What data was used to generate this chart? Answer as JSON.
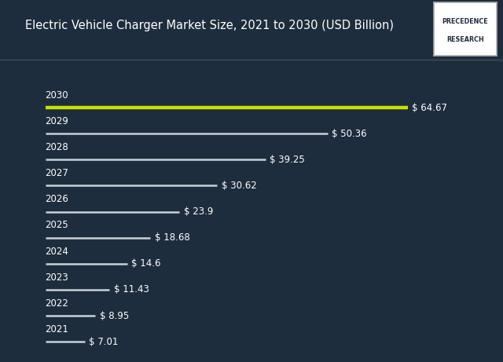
{
  "title": "Electric Vehicle Charger Market Size, 2021 to 2030 (USD Billion)",
  "years": [
    2030,
    2029,
    2028,
    2027,
    2026,
    2025,
    2024,
    2023,
    2022,
    2021
  ],
  "values": [
    64.67,
    50.36,
    39.25,
    30.62,
    23.9,
    18.68,
    14.6,
    11.43,
    8.95,
    7.01
  ],
  "labels": [
    "$ 64.67",
    "$ 50.36",
    "$ 39.25",
    "$ 30.62",
    "$ 23.9",
    "$ 18.68",
    "$ 14.6",
    "$ 11.43",
    "$ 8.95",
    "$ 7.01"
  ],
  "bar_color_default": "#c8d0d8",
  "bar_color_highlight": "#c8e000",
  "background_color": "#1e2d3d",
  "title_color": "#ffffff",
  "label_color": "#ffffff",
  "year_color": "#ffffff",
  "title_fontsize": 10.5,
  "label_fontsize": 8.5,
  "year_fontsize": 8.5,
  "xlim_max": 70,
  "logo_text_line1": "PRECEDENCE",
  "logo_text_line2": "RESEARCH",
  "separator_color": "#3a5060"
}
